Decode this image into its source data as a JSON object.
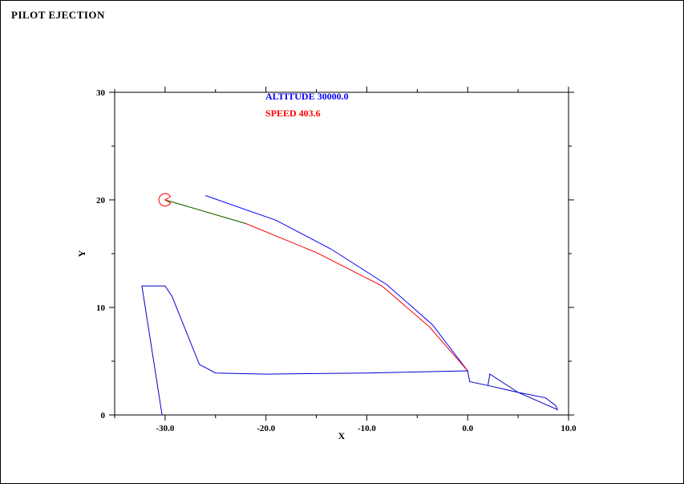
{
  "title": "PILOT EJECTION",
  "chart_data": {
    "type": "line",
    "xlabel": "X",
    "ylabel": "Y",
    "xlim": [
      -35,
      10
    ],
    "ylim": [
      0,
      30
    ],
    "x_ticks": [
      -30,
      -20,
      -10,
      0,
      10
    ],
    "x_tick_labels": [
      "-30.0",
      "-20.0",
      "-10.0",
      "0.0",
      "10.0"
    ],
    "y_ticks": [
      0,
      10,
      20,
      30
    ],
    "y_tick_labels": [
      "0",
      "10",
      "20",
      "30"
    ],
    "grid": false,
    "annotations": {
      "altitude": "ALTITUDE 30000.0",
      "speed": "SPEED 403.6"
    },
    "colors": {
      "altitude": "#0000ff",
      "speed": "#ff0000",
      "upper_path": "#0000ff",
      "lower_path": "#ff0000",
      "recent_path": "#008000",
      "pilot": "#ff0000",
      "aircraft": "#0000cc"
    },
    "series": [
      {
        "key": "upper_path",
        "x": [
          -26.0,
          -19.0,
          -13.5,
          -8.0,
          -3.5,
          0.0
        ],
        "y": [
          20.4,
          18.1,
          15.4,
          12.1,
          8.4,
          4.1
        ]
      },
      {
        "key": "lower_path",
        "x": [
          -30.0,
          -22.0,
          -15.0,
          -8.5,
          -3.8,
          0.0
        ],
        "y": [
          20.0,
          17.8,
          15.1,
          12.0,
          8.2,
          4.1
        ]
      },
      {
        "key": "recent_path",
        "x": [
          -30.0,
          -22.0
        ],
        "y": [
          20.0,
          17.8
        ]
      },
      {
        "key": "aircraft",
        "x": [
          -30.3,
          -32.3,
          -30.0,
          -29.3,
          -26.6,
          -25.0,
          -20.0,
          -10.0,
          0.0,
          0.2,
          2.2,
          5.0,
          7.7,
          8.7,
          8.9,
          5.0,
          2.2,
          2.0
        ],
        "y": [
          0.0,
          12.0,
          12.0,
          11.0,
          4.7,
          3.9,
          3.8,
          3.9,
          4.1,
          3.1,
          2.7,
          2.1,
          1.6,
          0.9,
          0.5,
          2.1,
          3.8,
          2.7
        ]
      }
    ],
    "pilot_marker": {
      "x": -30.0,
      "y": 20.0
    }
  }
}
